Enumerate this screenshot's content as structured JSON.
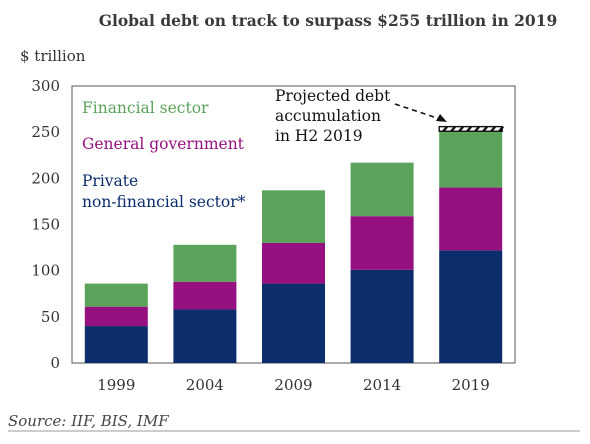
{
  "title": "Global debt on track to surpass $255 trillion in 2019",
  "source": "Source: IIF, BIS, IMF",
  "colors": {
    "financial": "#5ba35a",
    "government": "#96117f",
    "private": "#0c2d6b",
    "projected": "#111111"
  },
  "legend": {
    "financial": "Financial sector",
    "government": "General government",
    "private_line1": "Private",
    "private_line2": "non-financial sector*"
  },
  "annotation": {
    "line1": "Projected debt",
    "line2": "accumulation",
    "line3": "in H2 2019"
  },
  "chart_data": {
    "type": "bar",
    "stacked": true,
    "ylabel": "$ trillion",
    "ylim": [
      0,
      300
    ],
    "yticks": [
      0,
      50,
      100,
      150,
      200,
      250,
      300
    ],
    "categories": [
      "1999",
      "2004",
      "2009",
      "2014",
      "2019"
    ],
    "series": [
      {
        "name": "Private non-financial sector*",
        "values": [
          40,
          58,
          86,
          101,
          122
        ]
      },
      {
        "name": "General government",
        "values": [
          21,
          30,
          44,
          58,
          68
        ]
      },
      {
        "name": "Financial sector",
        "values": [
          25,
          40,
          57,
          58,
          61
        ]
      }
    ],
    "projected": {
      "category": "2019",
      "from": 251,
      "to": 256
    },
    "grid": false,
    "legend_position": "top-left"
  }
}
